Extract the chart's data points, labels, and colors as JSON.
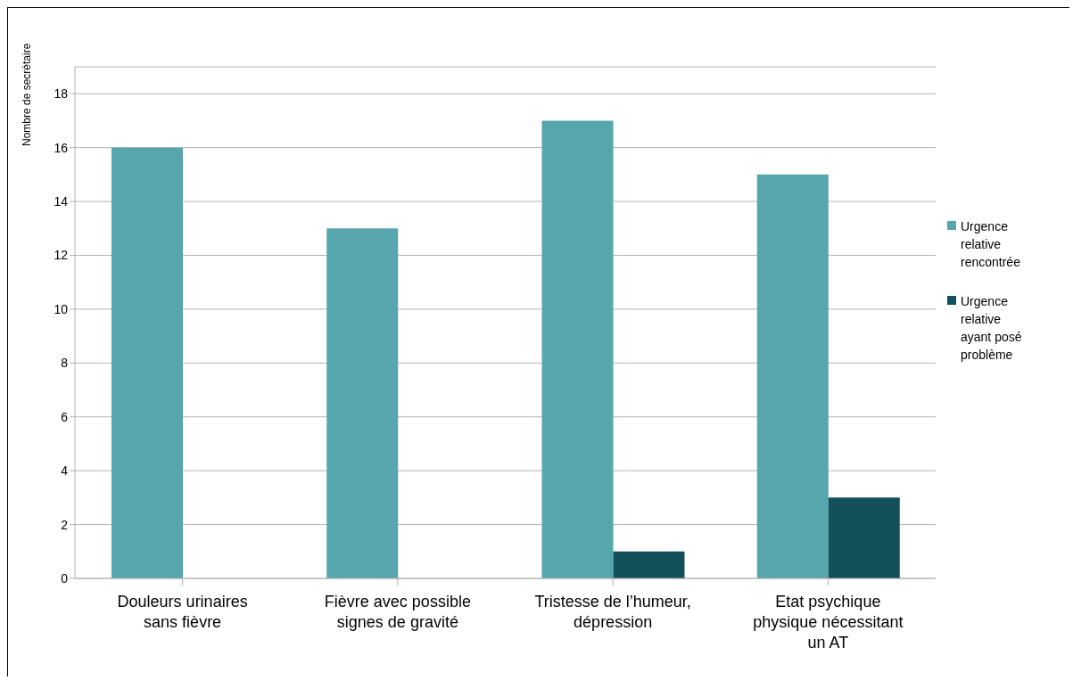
{
  "chart_data": {
    "type": "bar",
    "ylabel": "Nombre de secrétaire",
    "categories": [
      "Douleurs urinaires sans fièvre",
      "Fièvre avec possible signes de gravité",
      "Tristesse de l’humeur, dépression",
      "Etat psychique physique nécessitant un AT"
    ],
    "series": [
      {
        "name": "Urgence relative rencontrée",
        "color": "#57a5ad",
        "values": [
          16,
          13,
          17,
          15
        ]
      },
      {
        "name": "Urgence relative ayant posé problème",
        "color": "#12505a",
        "values": [
          0,
          0,
          1,
          3
        ]
      }
    ],
    "ylim": [
      0,
      19
    ],
    "yticks": [
      0,
      2,
      4,
      6,
      8,
      10,
      12,
      14,
      16,
      18
    ],
    "grid": "y",
    "legend": "right"
  }
}
